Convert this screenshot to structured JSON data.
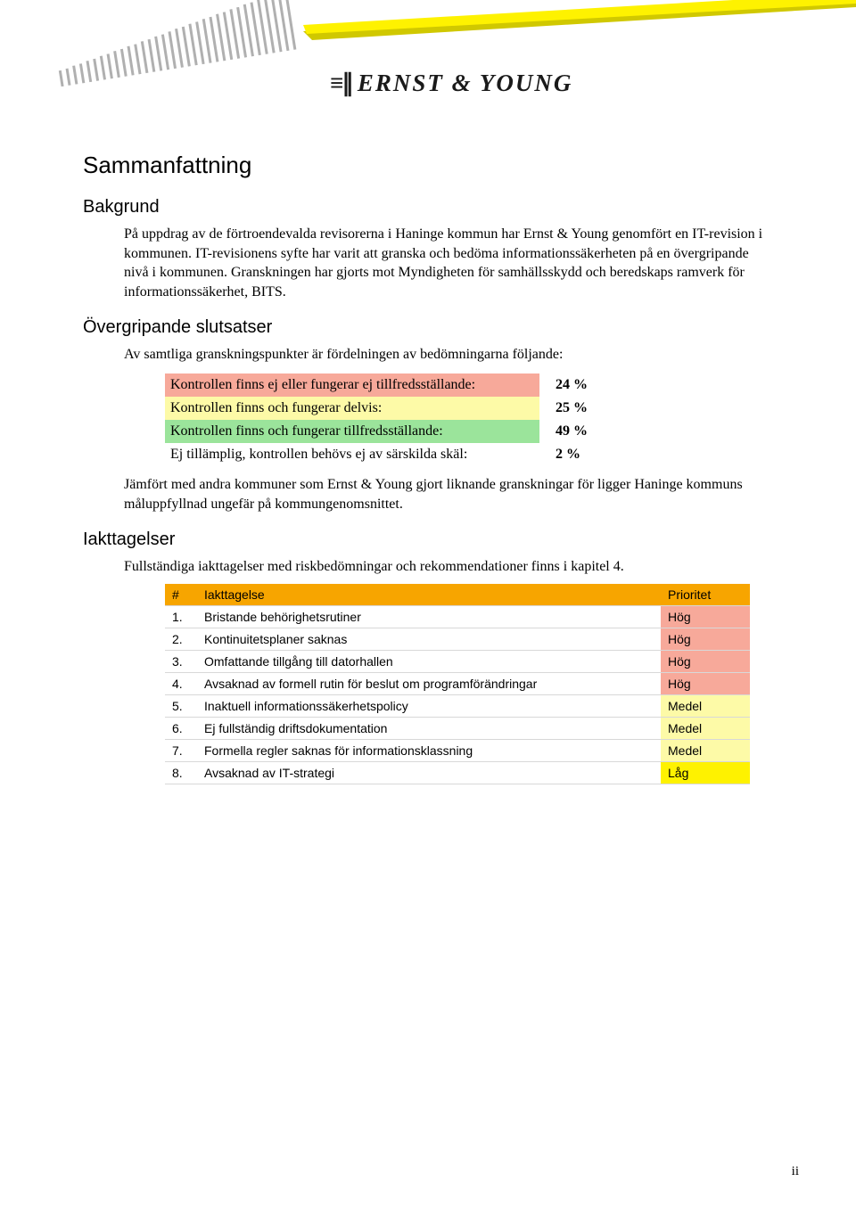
{
  "logo_text": "ERNST & YOUNG",
  "h1": "Sammanfattning",
  "sec_bakgrund": {
    "heading": "Bakgrund",
    "para": "På uppdrag av de förtroendevalda revisorerna i Haninge kommun har Ernst & Young genomfört en IT-revision i kommunen. IT-revisionens syfte har varit att granska och bedöma informationssäkerheten på en övergripande nivå i kommunen. Granskningen har gjorts mot Myndigheten för samhällsskydd och beredskaps ramverk för informationssäkerhet, BITS."
  },
  "sec_overgripande": {
    "heading": "Övergripande slutsatser",
    "intro": "Av samtliga granskningspunkter är fördelningen av bedömningarna följande:",
    "rows": [
      {
        "label": "Kontrollen finns ej eller fungerar ej tillfredsställande:",
        "pct": "24 %",
        "bg": "#f7a99a"
      },
      {
        "label": "Kontrollen finns och fungerar delvis:",
        "pct": "25 %",
        "bg": "#fdfaa7"
      },
      {
        "label": "Kontrollen finns och fungerar tillfredsställande:",
        "pct": "49 %",
        "bg": "#9be49b"
      },
      {
        "label": "Ej tillämplig, kontrollen behövs ej av särskilda skäl:",
        "pct": "2 %",
        "bg": "#ffffff"
      }
    ],
    "outro": "Jämfört med andra kommuner som Ernst & Young gjort liknande granskningar för ligger Haninge kommuns måluppfyllnad ungefär på kommungenomsnittet."
  },
  "sec_iakttagelser": {
    "heading": "Iakttagelser",
    "intro": "Fullständiga iakttagelser med riskbedömningar och rekommendationer finns i kapitel 4.",
    "header_bg": "#f7a500",
    "col_num": "#",
    "col_desc": "Iakttagelse",
    "col_prio": "Prioritet",
    "rows": [
      {
        "n": "1.",
        "desc": "Bristande behörighetsrutiner",
        "prio": "Hög",
        "prio_bg": "#f7a99a"
      },
      {
        "n": "2.",
        "desc": "Kontinuitetsplaner saknas",
        "prio": "Hög",
        "prio_bg": "#f7a99a"
      },
      {
        "n": "3.",
        "desc": "Omfattande tillgång till datorhallen",
        "prio": "Hög",
        "prio_bg": "#f7a99a"
      },
      {
        "n": "4.",
        "desc": "Avsaknad av formell rutin för beslut om programförändringar",
        "prio": "Hög",
        "prio_bg": "#f7a99a"
      },
      {
        "n": "5.",
        "desc": "Inaktuell informationssäkerhetspolicy",
        "prio": "Medel",
        "prio_bg": "#fdfaa7"
      },
      {
        "n": "6.",
        "desc": "Ej fullständig driftsdokumentation",
        "prio": "Medel",
        "prio_bg": "#fdfaa7"
      },
      {
        "n": "7.",
        "desc": "Formella regler saknas för informationsklassning",
        "prio": "Medel",
        "prio_bg": "#fdfaa7"
      },
      {
        "n": "8.",
        "desc": "Avsaknad av IT-strategi",
        "prio": "Låg",
        "prio_bg": "#fef200"
      }
    ]
  },
  "page_num": "ii",
  "colors": {
    "beam_yellow": "#fef200",
    "beam_shadow": "#d0c800"
  }
}
